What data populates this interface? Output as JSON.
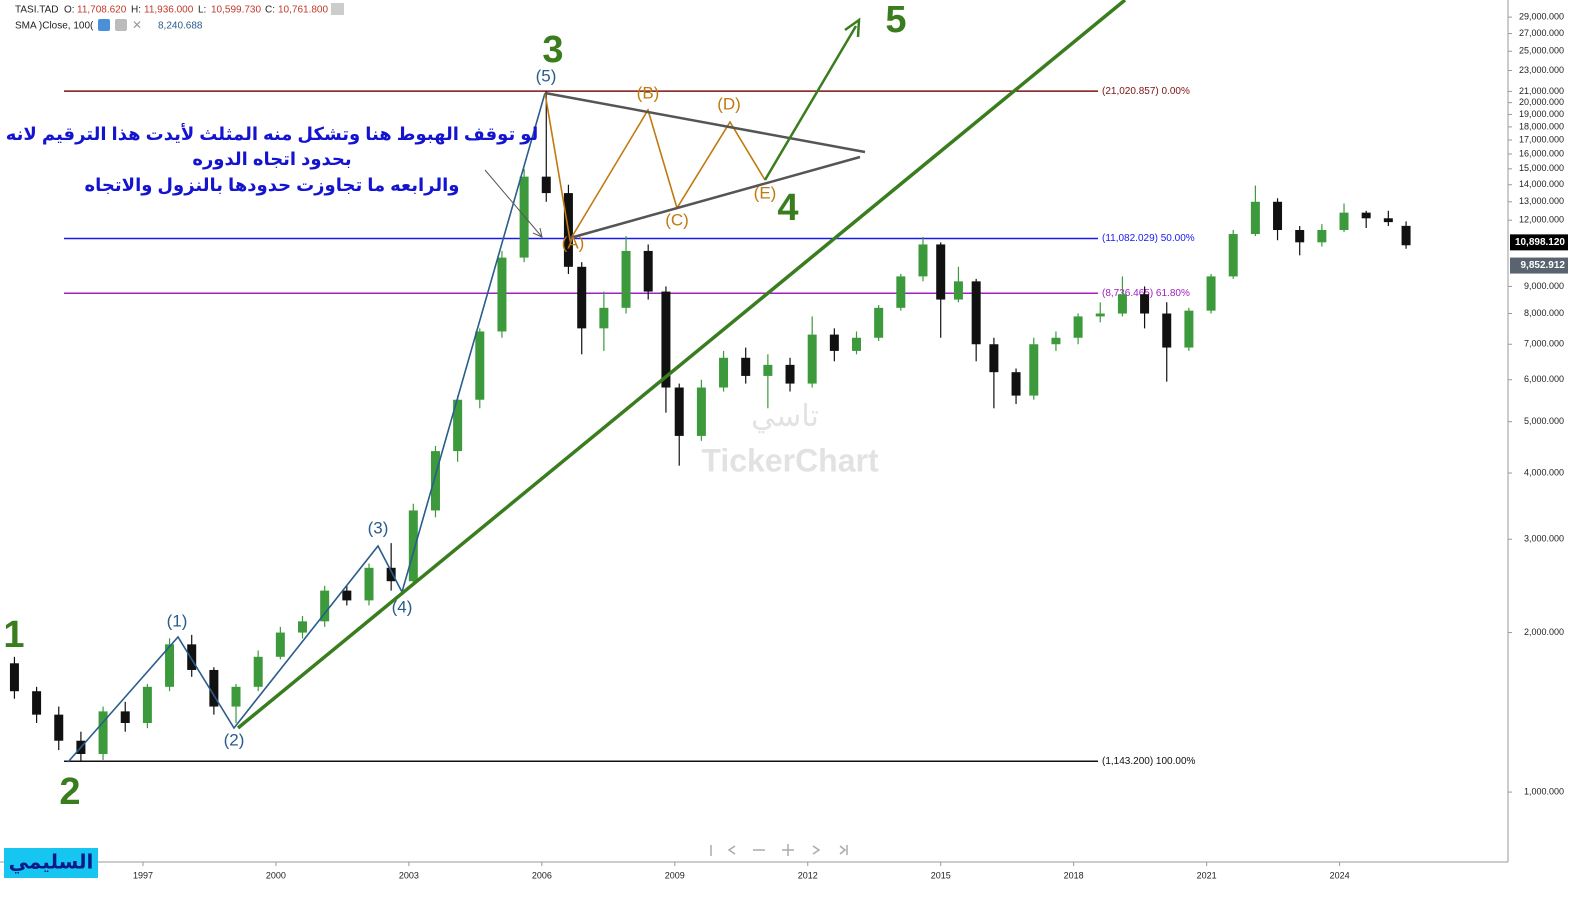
{
  "chart_data": {
    "type": "candlestick",
    "symbol": "TASI.TAD",
    "ohlc_labels": [
      {
        "label": "O:",
        "value": "11,708.620"
      },
      {
        "label": "H:",
        "value": "11,936.000"
      },
      {
        "label": "L:",
        "value": "10,599.730"
      },
      {
        "label": "C:",
        "value": "10,761.800"
      }
    ],
    "indicator": {
      "name": "SMA )Close, 100(",
      "value": "8,240.688"
    },
    "yscale": "log",
    "up_color": "#3c9a3c",
    "down_color": "#111111",
    "x": [
      1994.1,
      1994.6,
      1995.1,
      1995.6,
      1996.1,
      1996.6,
      1997.1,
      1997.6,
      1998.1,
      1998.6,
      1999.1,
      1999.6,
      2000.1,
      2000.6,
      2001.1,
      2001.6,
      2002.1,
      2002.6,
      2003.1,
      2003.6,
      2004.1,
      2004.6,
      2005.1,
      2005.6,
      2006.1,
      2006.6,
      2006.9,
      2007.4,
      2007.9,
      2008.4,
      2008.8,
      2009.1,
      2009.6,
      2010.1,
      2010.6,
      2011.1,
      2011.6,
      2012.1,
      2012.6,
      2013.1,
      2013.6,
      2014.1,
      2014.6,
      2015.0,
      2015.4,
      2015.8,
      2016.2,
      2016.7,
      2017.1,
      2017.6,
      2018.1,
      2018.6,
      2019.1,
      2019.6,
      2020.1,
      2020.6,
      2021.1,
      2021.6,
      2022.1,
      2022.6,
      2023.1,
      2023.6,
      2024.1,
      2024.6,
      2025.1,
      2025.5
    ],
    "open": [
      1750,
      1550,
      1400,
      1250,
      1180,
      1420,
      1350,
      1580,
      1900,
      1700,
      1450,
      1580,
      1800,
      2000,
      2100,
      2400,
      2300,
      2650,
      2500,
      3400,
      4400,
      5500,
      7400,
      10200,
      14500,
      13500,
      9800,
      7500,
      8200,
      10500,
      8800,
      5800,
      4700,
      5800,
      6600,
      6100,
      6400,
      5900,
      7300,
      6800,
      7200,
      8200,
      9400,
      10800,
      8500,
      9200,
      7000,
      6200,
      5600,
      7000,
      7200,
      7900,
      8000,
      8700,
      8000,
      6900,
      8100,
      9400,
      11300,
      13000,
      11500,
      10900,
      11500,
      12400,
      12100,
      11708.62
    ],
    "high": [
      1800,
      1580,
      1450,
      1300,
      1450,
      1480,
      1600,
      1950,
      1980,
      1720,
      1600,
      1850,
      2050,
      2150,
      2450,
      2450,
      2700,
      2950,
      3500,
      4500,
      5600,
      7500,
      10500,
      15000,
      21020,
      14000,
      10000,
      8800,
      11200,
      10800,
      9000,
      5900,
      6000,
      6800,
      6900,
      6700,
      6600,
      7900,
      7500,
      7400,
      8300,
      9500,
      11160,
      10900,
      9800,
      9300,
      7200,
      6300,
      7200,
      7400,
      8000,
      8400,
      9400,
      9000,
      8400,
      8200,
      9500,
      11500,
      13950,
      13200,
      11700,
      11800,
      12900,
      12500,
      12500,
      11936
    ],
    "low": [
      1500,
      1350,
      1200,
      1143,
      1150,
      1300,
      1320,
      1550,
      1650,
      1400,
      1350,
      1550,
      1780,
      1950,
      2050,
      2250,
      2250,
      2400,
      2450,
      3300,
      4200,
      5300,
      7200,
      10000,
      13000,
      9500,
      6700,
      6800,
      8000,
      8500,
      5200,
      4130,
      4600,
      5700,
      5900,
      5300,
      5700,
      5800,
      6500,
      6700,
      7100,
      8100,
      9200,
      7200,
      8400,
      6500,
      5300,
      5400,
      5500,
      6800,
      7000,
      7700,
      7900,
      7500,
      5950,
      6800,
      8000,
      9300,
      11200,
      11000,
      10300,
      10700,
      11400,
      11600,
      11700,
      10599.73
    ],
    "close": [
      1550,
      1400,
      1250,
      1180,
      1420,
      1350,
      1580,
      1900,
      1700,
      1450,
      1580,
      1800,
      2000,
      2100,
      2400,
      2300,
      2650,
      2500,
      3400,
      4400,
      5500,
      7400,
      10200,
      14500,
      13500,
      9800,
      7500,
      8200,
      10500,
      8800,
      5800,
      4700,
      5800,
      6600,
      6100,
      6400,
      5900,
      7300,
      6800,
      7200,
      8200,
      9400,
      10800,
      8500,
      9200,
      7000,
      6200,
      5600,
      7000,
      7200,
      7900,
      8000,
      8700,
      8000,
      6900,
      8100,
      9400,
      11300,
      13000,
      11500,
      10900,
      11500,
      12400,
      12100,
      11900,
      10761.8
    ],
    "xlim": [
      1994,
      2027.8
    ],
    "xticks": [
      1997,
      2000,
      2003,
      2006,
      2009,
      2012,
      2015,
      2018,
      2021,
      2024
    ],
    "ylim": [
      738,
      31240
    ],
    "yticks": [
      {
        "value": 1000,
        "label": "1,000.000"
      },
      {
        "value": 2000,
        "label": "2,000.000"
      },
      {
        "value": 3000,
        "label": "3,000.000"
      },
      {
        "value": 4000,
        "label": "4,000.000"
      },
      {
        "value": 5000,
        "label": "5,000.000"
      },
      {
        "value": 6000,
        "label": "6,000.000"
      },
      {
        "value": 7000,
        "label": "7,000.000"
      },
      {
        "value": 8000,
        "label": "8,000.000"
      },
      {
        "value": 9000,
        "label": "9,000.000"
      },
      {
        "value": 12000,
        "label": "12,000.000"
      },
      {
        "value": 13000,
        "label": "13,000.000"
      },
      {
        "value": 14000,
        "label": "14,000.000"
      },
      {
        "value": 15000,
        "label": "15,000.000"
      },
      {
        "value": 16000,
        "label": "16,000.000"
      },
      {
        "value": 17000,
        "label": "17,000.000"
      },
      {
        "value": 18000,
        "label": "18,000.000"
      },
      {
        "value": 19000,
        "label": "19,000.000"
      },
      {
        "value": 20000,
        "label": "20,000.000"
      },
      {
        "value": 21000,
        "label": "21,000.000"
      },
      {
        "value": 23000,
        "label": "23,000.000"
      },
      {
        "value": 25000,
        "label": "25,000.000"
      },
      {
        "value": 27000,
        "label": "27,000.000"
      },
      {
        "value": 29000,
        "label": "29,000.000"
      }
    ],
    "fib_levels": [
      {
        "value": 21020.857,
        "label": "(21,020.857) 0.00%",
        "color": "#7a1414"
      },
      {
        "value": 11082.029,
        "label": "(11,082.029) 50.00%",
        "color": "#1a1aee"
      },
      {
        "value": 8736.465,
        "label": "(8,736.465) 61.80%",
        "color": "#a020c0"
      },
      {
        "value": 1143.2,
        "label": "(1,143.200) 100.00%",
        "color": "#111111"
      }
    ],
    "price_badges": [
      {
        "value": 10898.12,
        "label": "10,898.120",
        "color": "#000000"
      },
      {
        "value": 9852.912,
        "label": "9,852.912",
        "color": "#5a6470"
      }
    ],
    "waves": [
      "1",
      "2",
      "3",
      "4",
      "5"
    ],
    "sub_waves": [
      "(1)",
      "(2)",
      "(3)",
      "(4)",
      "(5)"
    ],
    "corrective_waves": [
      "(A)",
      "(B)",
      "(C)",
      "(D)",
      "(E)"
    ],
    "note": [
      "لو توقف الهبوط هنا وتشكل منه المثلث لأيدت هذا الترقيم لانه",
      "بحدود اتجاه الدوره",
      "والرابعه ما تجاوزت حدودها بالنزول والاتجاه"
    ],
    "watermark": [
      "تاسي",
      "TickerChart"
    ],
    "author": "السليمي"
  }
}
